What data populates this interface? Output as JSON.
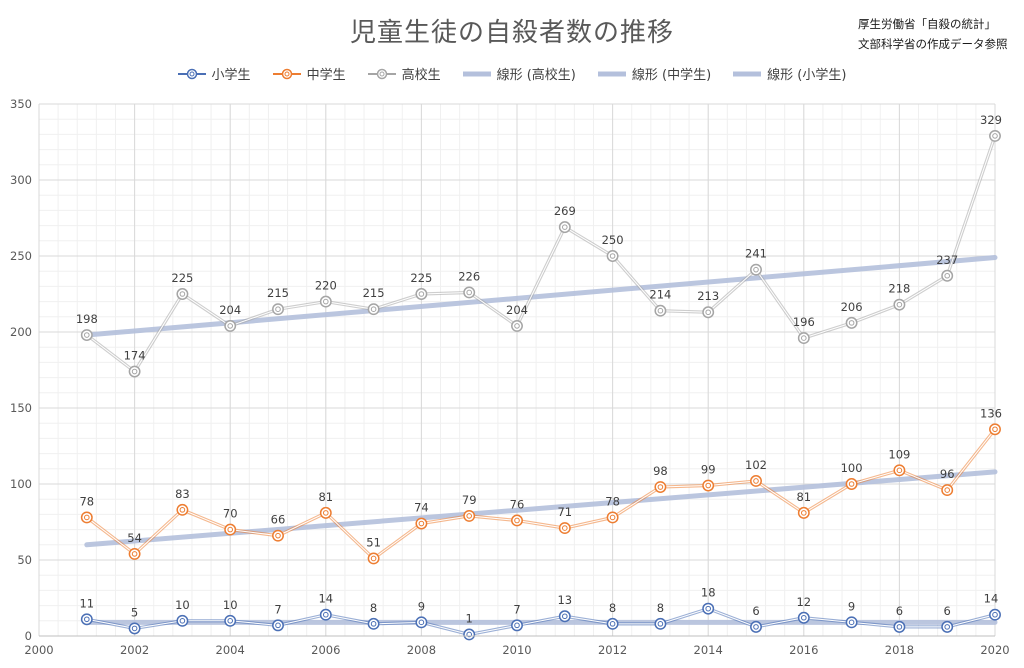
{
  "chart_data": {
    "type": "line",
    "title": "児童生徒の自殺者数の推移",
    "source_lines": [
      "厚生労働省「自殺の統計」",
      "文部科学省の作成データ参照"
    ],
    "x": [
      2001,
      2002,
      2003,
      2004,
      2005,
      2006,
      2007,
      2008,
      2009,
      2010,
      2011,
      2012,
      2013,
      2014,
      2015,
      2016,
      2017,
      2018,
      2019,
      2020
    ],
    "xlim": [
      2000,
      2020
    ],
    "xticks": [
      2000,
      2002,
      2004,
      2006,
      2008,
      2010,
      2012,
      2014,
      2016,
      2018,
      2020
    ],
    "ylim": [
      0,
      350
    ],
    "yticks": [
      0,
      50,
      100,
      150,
      200,
      250,
      300,
      350
    ],
    "grid": true,
    "legend_position": "top",
    "series": [
      {
        "name": "小学生",
        "color": "#4a6fb5",
        "values": [
          11,
          5,
          10,
          10,
          7,
          14,
          8,
          9,
          1,
          7,
          13,
          8,
          8,
          18,
          6,
          12,
          9,
          6,
          6,
          14
        ]
      },
      {
        "name": "中学生",
        "color": "#ed7d31",
        "values": [
          78,
          54,
          83,
          70,
          66,
          81,
          51,
          74,
          79,
          76,
          71,
          78,
          98,
          99,
          102,
          81,
          100,
          109,
          96,
          136
        ]
      },
      {
        "name": "高校生",
        "color": "#a5a5a5",
        "values": [
          198,
          174,
          225,
          204,
          215,
          220,
          215,
          225,
          226,
          204,
          269,
          250,
          214,
          213,
          241,
          196,
          206,
          218,
          237,
          329
        ]
      }
    ],
    "trendlines": [
      {
        "name": "線形 (高校生)",
        "color": "#b4c0dc",
        "start": [
          2001,
          198
        ],
        "end": [
          2020,
          249
        ]
      },
      {
        "name": "線形 (中学生)",
        "color": "#b4c0dc",
        "start": [
          2001,
          60
        ],
        "end": [
          2020,
          108
        ]
      },
      {
        "name": "線形 (小学生)",
        "color": "#b4c0dc",
        "start": [
          2001,
          9
        ],
        "end": [
          2020,
          9
        ]
      }
    ]
  }
}
